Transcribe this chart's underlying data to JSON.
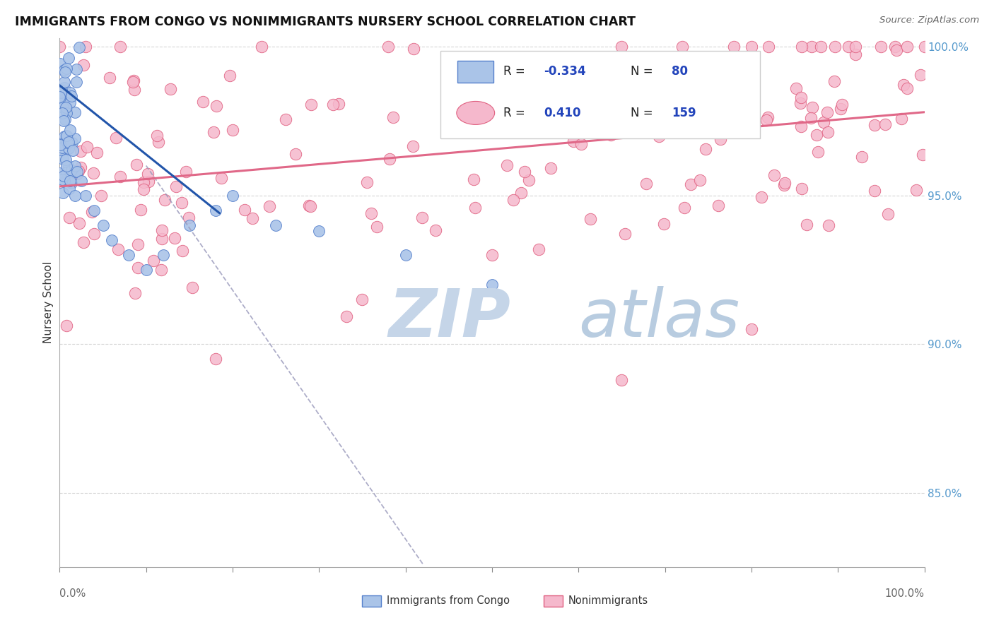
{
  "title": "IMMIGRANTS FROM CONGO VS NONIMMIGRANTS NURSERY SCHOOL CORRELATION CHART",
  "source": "Source: ZipAtlas.com",
  "ylabel": "Nursery School",
  "legend_label_blue": "Immigrants from Congo",
  "legend_label_pink": "Nonimmigrants",
  "blue_color": "#aac4e8",
  "blue_edge_color": "#5580cc",
  "blue_line_color": "#2255aa",
  "pink_color": "#f5b8cc",
  "pink_edge_color": "#e06080",
  "pink_line_color": "#e06888",
  "watermark_zip_color": "#c5d5e8",
  "watermark_atlas_color": "#b8cce0",
  "grid_color": "#cccccc",
  "ytick_color": "#5599cc",
  "xlim": [
    0.0,
    1.0
  ],
  "ylim": [
    0.825,
    1.003
  ],
  "yticks": [
    0.85,
    0.9,
    0.95,
    1.0
  ],
  "ytick_labels": [
    "85.0%",
    "90.0%",
    "95.0%",
    "100.0%"
  ]
}
